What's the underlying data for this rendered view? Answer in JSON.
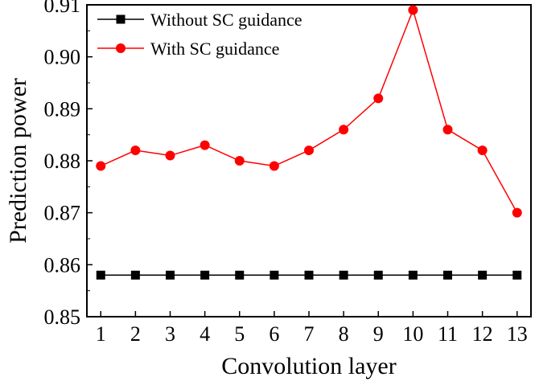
{
  "chart_data": {
    "type": "line",
    "title": "",
    "xlabel": "Convolution layer",
    "ylabel": "Prediction power",
    "x": [
      1,
      2,
      3,
      4,
      5,
      6,
      7,
      8,
      9,
      10,
      11,
      12,
      13
    ],
    "xlim": [
      0.6,
      13.4
    ],
    "ylim": [
      0.85,
      0.91
    ],
    "yticks": [
      "0.85",
      "0.86",
      "0.87",
      "0.88",
      "0.89",
      "0.90",
      "0.91"
    ],
    "legend_position": "top-left",
    "grid": false,
    "series": [
      {
        "name": "Without SC guidance",
        "color": "#000000",
        "marker": "square",
        "values": [
          0.858,
          0.858,
          0.858,
          0.858,
          0.858,
          0.858,
          0.858,
          0.858,
          0.858,
          0.858,
          0.858,
          0.858,
          0.858
        ]
      },
      {
        "name": "With SC guidance",
        "color": "#ff0000",
        "marker": "circle",
        "values": [
          0.879,
          0.882,
          0.881,
          0.883,
          0.88,
          0.879,
          0.882,
          0.886,
          0.892,
          0.909,
          0.886,
          0.882,
          0.87
        ]
      }
    ]
  }
}
